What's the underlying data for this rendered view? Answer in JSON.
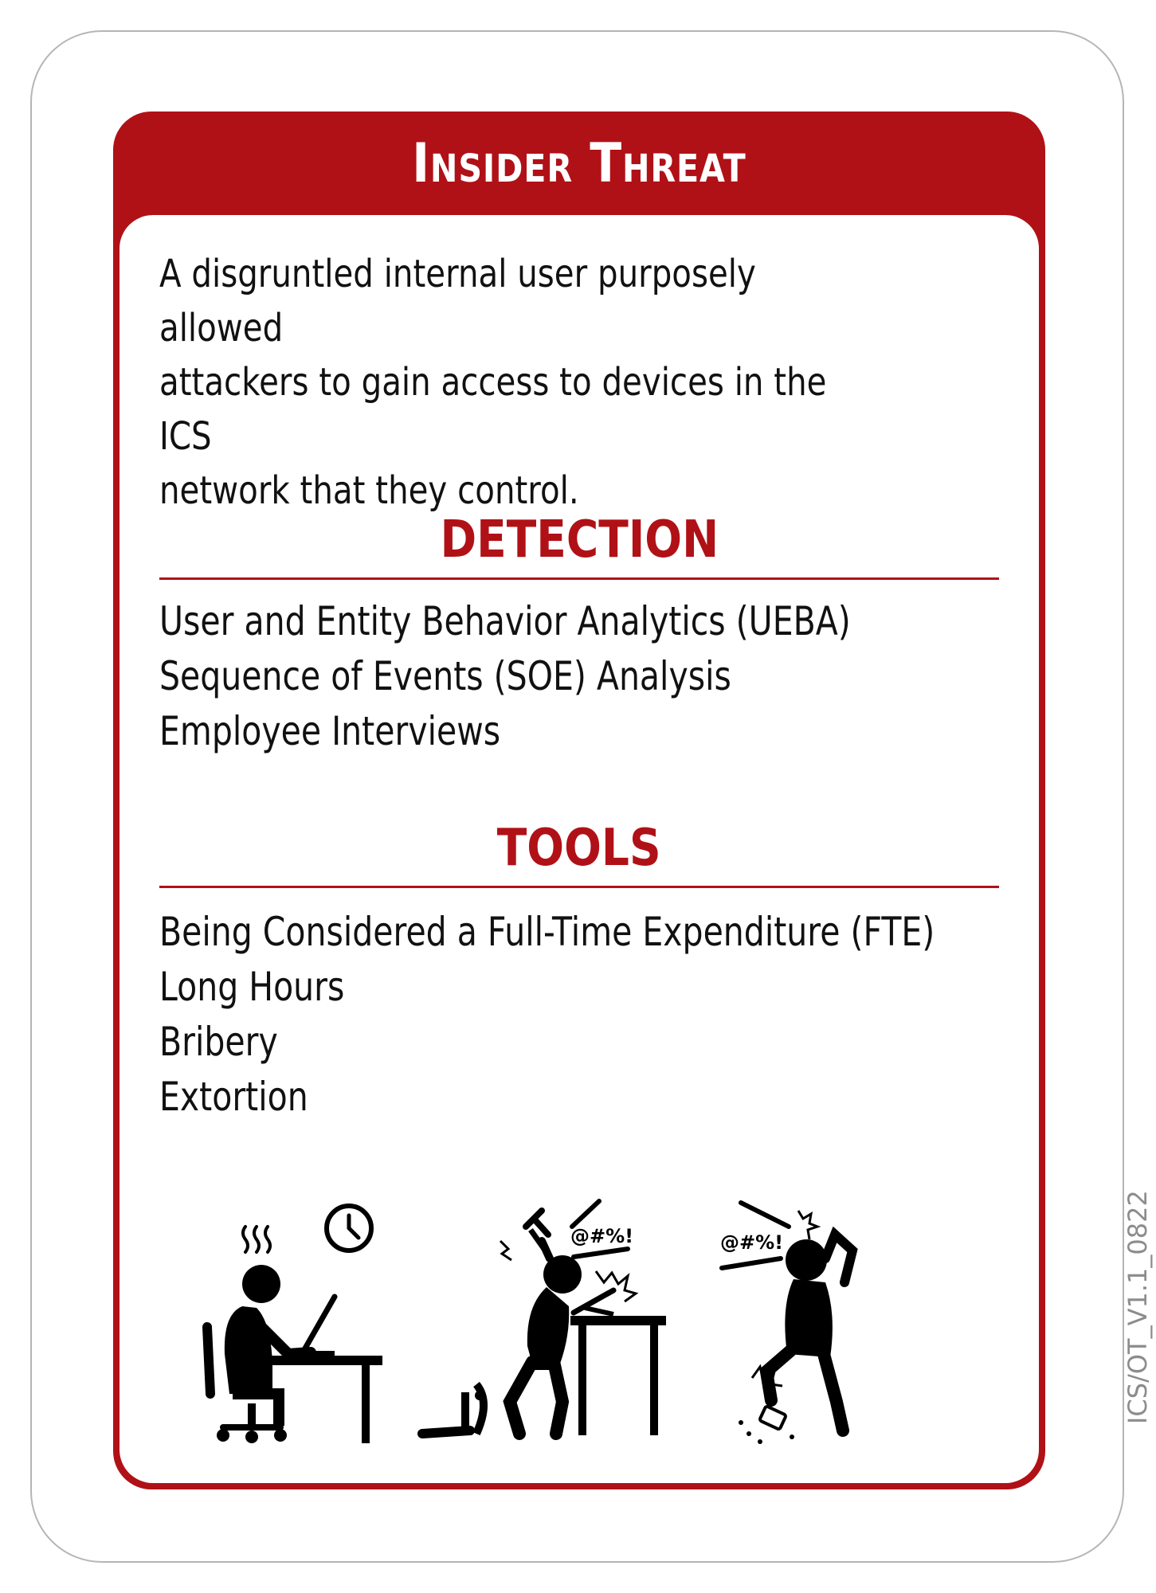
{
  "card": {
    "title": "Insider Threat",
    "description": "A disgruntled internal user purposely allowed\nattackers to gain access to devices in the ICS\nnetwork that they control.",
    "detection": {
      "heading": "DETECTION",
      "items": [
        "User and Entity Behavior Analytics (UEBA)",
        "Sequence of Events (SOE) Analysis",
        "Employee Interviews"
      ]
    },
    "tools": {
      "heading": "TOOLS",
      "items": [
        "Being Considered a Full-Time Expenditure (FTE)",
        "Long Hours",
        "Bribery",
        "Extortion"
      ]
    },
    "version": "ICS/OT_V1.1_0822",
    "illustrations": {
      "icons": [
        "overworked-person-icon",
        "angry-person-smashing-laptop-icon",
        "angry-person-stomping-phone-icon"
      ],
      "exclamations": [
        "@#%!",
        "@#%!"
      ]
    }
  },
  "colors": {
    "accent": "#b01117",
    "text": "#111111",
    "border": "#b5b5b5",
    "version": "#8c8c8c"
  }
}
